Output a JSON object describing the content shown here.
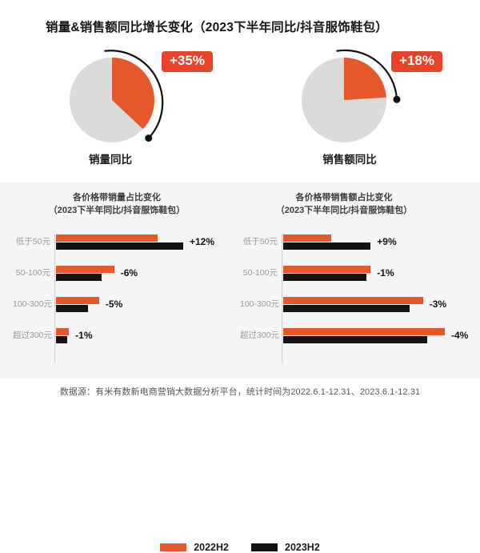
{
  "page": {
    "title": "销量&销售额同比增长变化（2023下半年同比/抖音服饰鞋包）",
    "footer": "数据源：有米有数新电商营销大数据分析平台，统计时间为2022.6.1-12.31、2023.6.1-12.31"
  },
  "colors": {
    "orange": "#E5582C",
    "badge_red": "#E74328",
    "black": "#141414",
    "pie_gray": "#DBDBDB",
    "panel_bg": "#F5F5F5",
    "category_gray": "#999999",
    "axis_line": "#CFCFCF"
  },
  "legend": [
    {
      "label": "2022H2",
      "color": "#E5582C"
    },
    {
      "label": "2023H2",
      "color": "#141414"
    }
  ],
  "chart_data": [
    {
      "type": "pie",
      "name": "sales-volume-yoy",
      "caption": "销量同比",
      "growth_label": "+35%",
      "slice_percent": 37
    },
    {
      "type": "pie",
      "name": "sales-amount-yoy",
      "caption": "销售额同比",
      "growth_label": "+18%",
      "slice_percent": 24
    },
    {
      "type": "bar",
      "name": "price-band-volume-share-change",
      "title_line1": "各价格带销量占比变化",
      "title_line2": "（2023下半年同比/抖音服饰鞋包）",
      "categories": [
        "低于50元",
        "50-100元",
        "100-300元",
        "超过300元"
      ],
      "series": [
        {
          "name": "2022H2",
          "values": [
            47,
            27,
            20,
            6
          ]
        },
        {
          "name": "2023H2",
          "values": [
            59,
            21,
            15,
            5
          ]
        }
      ],
      "change_labels": [
        "+12%",
        "-6%",
        "-5%",
        "-1%"
      ],
      "xmax": 75,
      "unit": "%"
    },
    {
      "type": "bar",
      "name": "price-band-revenue-share-change",
      "title_line1": "各价格带销售额占比变化",
      "title_line2": "（2023下半年同比/抖音服饰鞋包）",
      "categories": [
        "低于50元",
        "50-100元",
        "100-300元",
        "超过300元"
      ],
      "series": [
        {
          "name": "2022H2",
          "values": [
            11,
            20,
            32,
            37
          ]
        },
        {
          "name": "2023H2",
          "values": [
            20,
            19,
            29,
            33
          ]
        }
      ],
      "change_labels": [
        "+9%",
        "-1%",
        "-3%",
        "-4%"
      ],
      "xmax": 37,
      "unit": "%"
    }
  ]
}
